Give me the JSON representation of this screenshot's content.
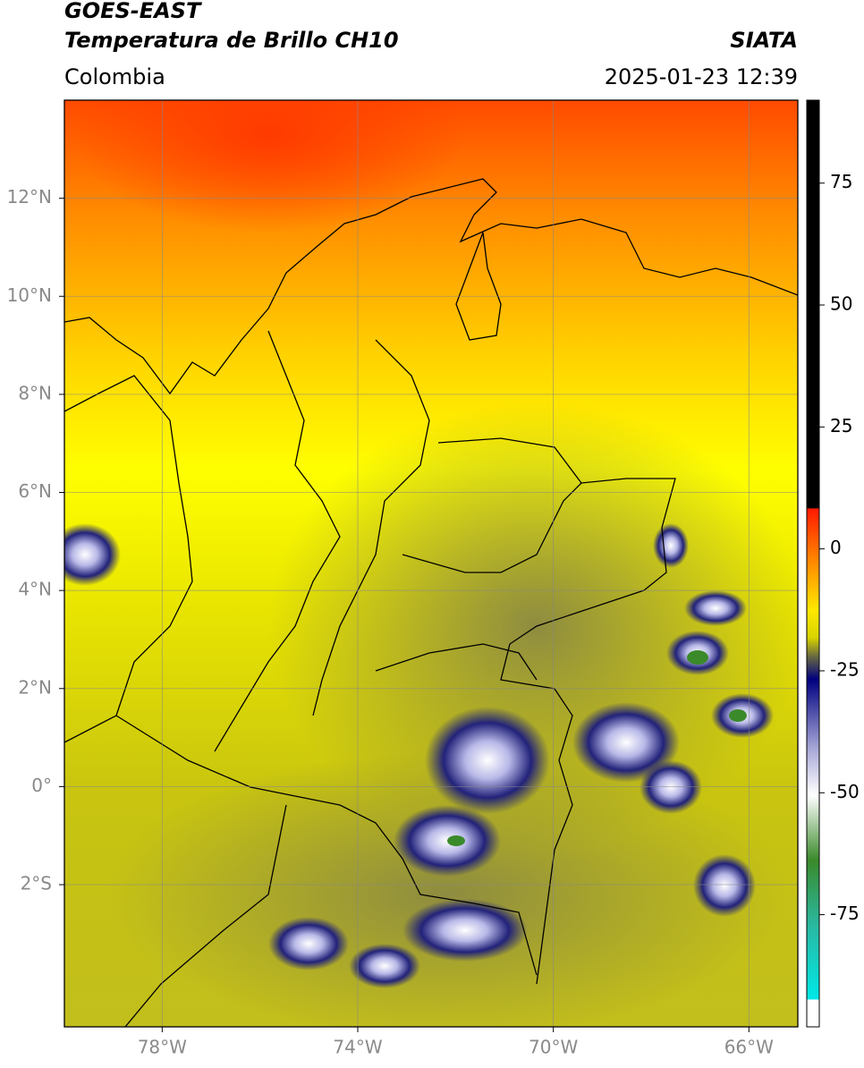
{
  "header": {
    "title": "GOES-EAST",
    "subtitle": "Temperatura de Brillo CH10",
    "source": "SIATA",
    "region": "Colombia",
    "timestamp": "2025-01-23 12:39"
  },
  "map": {
    "xlim": [
      -80,
      -65
    ],
    "ylim": [
      -4.9,
      14
    ],
    "xticks": [
      {
        "value": -78,
        "label": "78°W"
      },
      {
        "value": -74,
        "label": "74°W"
      },
      {
        "value": -70,
        "label": "70°W"
      },
      {
        "value": -66,
        "label": "66°W"
      }
    ],
    "yticks": [
      {
        "value": 12,
        "label": "12°N"
      },
      {
        "value": 10,
        "label": "10°N"
      },
      {
        "value": 8,
        "label": "8°N"
      },
      {
        "value": 6,
        "label": "6°N"
      },
      {
        "value": 4,
        "label": "4°N"
      },
      {
        "value": 2,
        "label": "2°N"
      },
      {
        "value": 0,
        "label": "0°"
      },
      {
        "value": -2,
        "label": "2°S"
      }
    ],
    "grid": true
  },
  "colorbar": {
    "lim": [
      -98,
      92
    ],
    "ticks": [
      75,
      50,
      25,
      0,
      -25,
      -50,
      -75
    ]
  }
}
